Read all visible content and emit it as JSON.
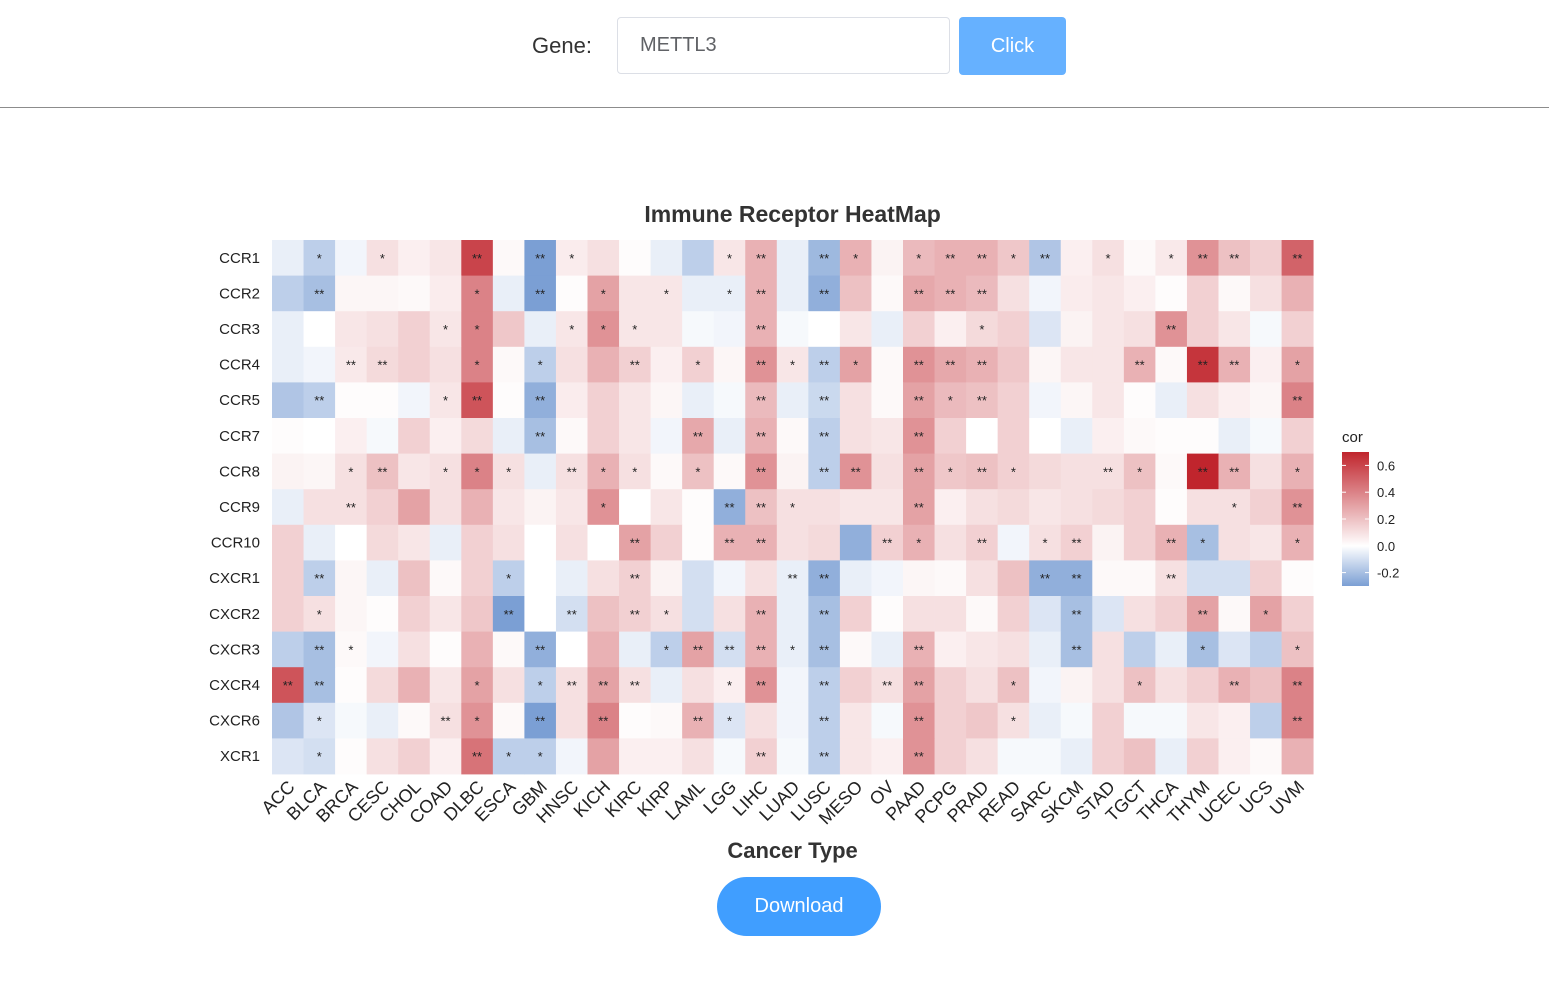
{
  "form": {
    "gene_label": "Gene:",
    "gene_value": "METTL3",
    "click_label": "Click"
  },
  "download_label": "Download",
  "chart_data": {
    "type": "heatmap",
    "title": "Immune Receptor HeatMap",
    "xlabel": "Cancer Type",
    "ylabel": "",
    "x": [
      "ACC",
      "BLCA",
      "BRCA",
      "CESC",
      "CHOL",
      "COAD",
      "DLBC",
      "ESCA",
      "GBM",
      "HNSC",
      "KICH",
      "KIRC",
      "KIRP",
      "LAML",
      "LGG",
      "LIHC",
      "LUAD",
      "LUSC",
      "MESO",
      "OV",
      "PAAD",
      "PCPG",
      "PRAD",
      "READ",
      "SARC",
      "SKCM",
      "STAD",
      "TGCT",
      "THCA",
      "THYM",
      "UCEC",
      "UCS",
      "UVM"
    ],
    "y": [
      "CCR1",
      "CCR2",
      "CCR3",
      "CCR4",
      "CCR5",
      "CCR7",
      "CCR8",
      "CCR9",
      "CCR10",
      "CXCR1",
      "CXCR2",
      "CXCR3",
      "CXCR4",
      "CXCR6",
      "XCR1"
    ],
    "values": [
      [
        -0.05,
        -0.15,
        -0.03,
        0.1,
        0.05,
        0.08,
        0.6,
        0.02,
        -0.3,
        0.06,
        0.1,
        0.01,
        -0.05,
        -0.15,
        0.08,
        0.25,
        -0.05,
        -0.22,
        0.25,
        0.04,
        0.22,
        0.25,
        0.25,
        0.18,
        -0.18,
        0.05,
        0.1,
        0.02,
        0.07,
        0.35,
        0.2,
        0.15,
        0.5
      ],
      [
        -0.15,
        -0.2,
        0.03,
        0.03,
        0.02,
        0.06,
        0.4,
        -0.05,
        -0.35,
        0.01,
        0.3,
        0.08,
        0.08,
        -0.05,
        -0.05,
        0.25,
        -0.05,
        -0.25,
        0.2,
        0.02,
        0.28,
        0.25,
        0.22,
        0.1,
        -0.03,
        0.06,
        0.08,
        0.05,
        0.01,
        0.15,
        0.02,
        0.1,
        0.25
      ],
      [
        -0.05,
        0.0,
        0.08,
        0.1,
        0.15,
        0.08,
        0.4,
        0.18,
        -0.05,
        0.08,
        0.35,
        0.08,
        0.08,
        -0.02,
        -0.03,
        0.25,
        -0.02,
        0.0,
        0.08,
        -0.05,
        0.15,
        0.05,
        0.12,
        0.15,
        -0.08,
        0.04,
        0.08,
        0.1,
        0.35,
        0.15,
        0.08,
        -0.02,
        0.15
      ],
      [
        -0.05,
        -0.03,
        0.07,
        0.12,
        0.15,
        0.1,
        0.4,
        0.02,
        -0.15,
        0.1,
        0.25,
        0.15,
        0.05,
        0.15,
        0.03,
        0.35,
        0.08,
        -0.15,
        0.3,
        0.02,
        0.35,
        0.28,
        0.25,
        0.18,
        0.03,
        0.08,
        0.08,
        0.25,
        0.02,
        0.65,
        0.25,
        0.05,
        0.3
      ],
      [
        -0.18,
        -0.15,
        0.01,
        0.01,
        -0.03,
        0.08,
        0.55,
        0.01,
        -0.25,
        0.06,
        0.15,
        0.08,
        0.03,
        -0.05,
        -0.02,
        0.22,
        -0.05,
        -0.12,
        0.1,
        0.02,
        0.3,
        0.22,
        0.2,
        0.15,
        -0.03,
        0.03,
        0.08,
        0.01,
        -0.05,
        0.1,
        0.05,
        0.03,
        0.4
      ],
      [
        0.01,
        0.0,
        0.05,
        -0.02,
        0.15,
        0.05,
        0.12,
        -0.05,
        -0.2,
        0.02,
        0.15,
        0.08,
        -0.03,
        0.28,
        -0.05,
        0.25,
        0.02,
        -0.15,
        0.1,
        0.08,
        0.35,
        0.15,
        0.0,
        0.15,
        0.0,
        -0.05,
        0.05,
        0.02,
        0.01,
        0.01,
        -0.05,
        -0.02,
        0.15
      ],
      [
        0.04,
        0.03,
        0.1,
        0.2,
        0.08,
        0.1,
        0.4,
        0.1,
        -0.05,
        0.1,
        0.25,
        0.1,
        0.02,
        0.2,
        0.02,
        0.35,
        0.04,
        -0.15,
        0.35,
        0.1,
        0.3,
        0.18,
        0.2,
        0.15,
        0.12,
        0.1,
        0.1,
        0.2,
        0.02,
        0.75,
        0.25,
        0.1,
        0.25
      ],
      [
        -0.05,
        0.1,
        0.1,
        0.15,
        0.3,
        0.1,
        0.25,
        0.08,
        0.04,
        0.08,
        0.35,
        0.0,
        0.08,
        0.01,
        -0.25,
        0.2,
        0.1,
        0.1,
        0.08,
        0.08,
        0.3,
        0.05,
        0.1,
        0.12,
        0.08,
        0.1,
        0.12,
        0.15,
        0.01,
        0.1,
        0.1,
        0.15,
        0.35
      ],
      [
        0.15,
        -0.05,
        0.0,
        0.12,
        0.08,
        -0.05,
        0.15,
        0.1,
        0.0,
        0.1,
        0.0,
        0.3,
        0.15,
        0.01,
        0.25,
        0.25,
        0.1,
        0.12,
        -0.25,
        0.15,
        0.25,
        0.1,
        0.15,
        -0.03,
        0.1,
        0.15,
        0.04,
        0.15,
        0.25,
        -0.2,
        0.1,
        0.08,
        0.25
      ],
      [
        0.15,
        -0.15,
        0.03,
        -0.05,
        0.2,
        0.02,
        0.15,
        -0.15,
        0.0,
        -0.05,
        0.1,
        0.15,
        0.04,
        -0.1,
        -0.03,
        0.1,
        -0.05,
        -0.25,
        -0.05,
        -0.03,
        0.03,
        0.02,
        0.1,
        0.2,
        -0.25,
        -0.25,
        0.02,
        0.02,
        0.1,
        -0.1,
        -0.1,
        0.15,
        0.01
      ],
      [
        0.15,
        0.1,
        0.03,
        0.01,
        0.15,
        0.08,
        0.18,
        -0.4,
        0.0,
        -0.1,
        0.2,
        0.15,
        0.1,
        -0.1,
        0.1,
        0.25,
        -0.05,
        -0.2,
        0.15,
        0.01,
        0.1,
        0.1,
        0.02,
        0.15,
        -0.08,
        -0.2,
        -0.08,
        0.1,
        0.15,
        0.3,
        0.02,
        0.3,
        0.15
      ],
      [
        -0.15,
        -0.2,
        0.02,
        -0.03,
        0.1,
        0.01,
        0.25,
        0.02,
        -0.25,
        0.0,
        0.25,
        -0.05,
        -0.15,
        0.3,
        -0.1,
        0.25,
        -0.05,
        -0.2,
        0.02,
        -0.05,
        0.25,
        0.05,
        0.08,
        0.1,
        -0.05,
        -0.2,
        0.1,
        -0.15,
        -0.05,
        -0.2,
        -0.08,
        -0.15,
        0.2
      ],
      [
        0.55,
        -0.2,
        0.01,
        0.12,
        0.25,
        0.08,
        0.3,
        0.1,
        -0.15,
        0.1,
        0.3,
        0.1,
        -0.05,
        0.1,
        0.05,
        0.35,
        -0.03,
        -0.15,
        0.15,
        0.1,
        0.3,
        0.15,
        0.1,
        0.2,
        -0.03,
        0.04,
        0.1,
        0.2,
        0.1,
        0.15,
        0.25,
        0.2,
        0.4
      ],
      [
        -0.18,
        -0.08,
        -0.02,
        -0.05,
        0.02,
        0.1,
        0.35,
        0.02,
        -0.35,
        0.1,
        0.4,
        0.01,
        0.02,
        0.25,
        -0.08,
        0.1,
        -0.03,
        -0.15,
        0.08,
        -0.02,
        0.35,
        0.15,
        0.18,
        0.1,
        -0.05,
        -0.02,
        0.15,
        -0.02,
        -0.02,
        0.08,
        0.05,
        -0.15,
        0.4
      ],
      [
        -0.08,
        -0.1,
        0.01,
        0.1,
        0.15,
        0.05,
        0.45,
        -0.15,
        -0.15,
        -0.03,
        0.3,
        0.05,
        0.05,
        0.1,
        -0.02,
        0.15,
        -0.02,
        -0.15,
        0.08,
        0.05,
        0.35,
        0.15,
        0.1,
        -0.02,
        -0.02,
        -0.05,
        0.15,
        0.2,
        -0.05,
        0.15,
        0.05,
        0.02,
        0.25
      ]
    ],
    "stars": [
      [
        "",
        "*",
        "",
        "*",
        "",
        "",
        "**",
        "",
        "**",
        "*",
        "",
        "",
        "",
        "",
        "*",
        "**",
        "",
        "**",
        "*",
        "",
        "*",
        "**",
        "**",
        "*",
        "**",
        "",
        "*",
        "",
        "*",
        "**",
        "**",
        "",
        "**"
      ],
      [
        "",
        "**",
        "",
        "",
        "",
        "",
        "*",
        "",
        "**",
        "",
        "*",
        "",
        "*",
        "",
        "*",
        "**",
        "",
        "**",
        "",
        "",
        "**",
        "**",
        "**",
        "",
        "",
        "",
        "",
        "",
        "",
        "",
        "",
        "",
        ""
      ],
      [
        "",
        "",
        "",
        "",
        "",
        "*",
        "*",
        "",
        "",
        "*",
        "*",
        "*",
        "",
        "",
        "",
        "**",
        "",
        "",
        "",
        "",
        "",
        "",
        "*",
        "",
        "",
        "",
        "",
        "",
        "**",
        "",
        "",
        "",
        ""
      ],
      [
        "",
        "",
        "**",
        "**",
        "",
        "",
        "*",
        "",
        "*",
        "",
        "",
        "**",
        "",
        "*",
        "",
        "**",
        "*",
        "**",
        "*",
        "",
        "**",
        "**",
        "**",
        "",
        "",
        "",
        "",
        "**",
        "",
        "**",
        "**",
        "",
        "*"
      ],
      [
        "",
        "**",
        "",
        "",
        "",
        "*",
        "**",
        "",
        "**",
        "",
        "",
        "",
        "",
        "",
        "",
        "**",
        "",
        "**",
        "",
        "",
        "**",
        "*",
        "**",
        "",
        "",
        "",
        "",
        "",
        "",
        "",
        "",
        "",
        "**"
      ],
      [
        "",
        "",
        "",
        "",
        "",
        "",
        "",
        "",
        "**",
        "",
        "",
        "",
        "",
        "**",
        "",
        "**",
        "",
        "**",
        "",
        "",
        "**",
        "",
        "",
        "",
        "",
        "",
        "",
        "",
        "",
        "",
        "",
        "",
        ""
      ],
      [
        "",
        "",
        "*",
        "**",
        "",
        "*",
        "*",
        "*",
        "",
        "**",
        "*",
        "*",
        "",
        "*",
        "",
        "**",
        "",
        "**",
        "**",
        "",
        "**",
        "*",
        "**",
        "*",
        "",
        "",
        "**",
        "*",
        "",
        "**",
        "**",
        "",
        "*"
      ],
      [
        "",
        "",
        "**",
        "",
        "",
        "",
        "",
        "",
        "",
        "",
        "*",
        "",
        "",
        "",
        "**",
        "**",
        "*",
        "",
        "",
        "",
        "**",
        "",
        "",
        "",
        "",
        "",
        "",
        "",
        "",
        "",
        "*",
        "",
        "**"
      ],
      [
        "",
        "",
        "",
        "",
        "",
        "",
        "",
        "",
        "",
        "",
        "",
        "**",
        "",
        "",
        "**",
        "**",
        "",
        "",
        "",
        "**",
        "*",
        "",
        "**",
        "",
        "*",
        "**",
        "",
        "",
        "**",
        "*",
        "",
        "",
        "*"
      ],
      [
        "",
        "**",
        "",
        "",
        "",
        "",
        "",
        "*",
        "",
        "",
        "",
        "**",
        "",
        "",
        "",
        "",
        "**",
        "**",
        "",
        "",
        "",
        "",
        "",
        "",
        "**",
        "**",
        "",
        "",
        "**",
        "",
        "",
        "",
        ""
      ],
      [
        "",
        "*",
        "",
        "",
        "",
        "",
        "",
        "**",
        "",
        "**",
        "",
        "**",
        "*",
        "",
        "",
        "**",
        "",
        "**",
        "",
        "",
        "",
        "",
        "",
        "",
        "",
        "**",
        "",
        "",
        "",
        "**",
        "",
        "*",
        ""
      ],
      [
        "",
        "**",
        "*",
        "",
        "",
        "",
        "",
        "",
        "**",
        "",
        "",
        "",
        "*",
        "**",
        "**",
        "**",
        "*",
        "**",
        "",
        "",
        "**",
        "",
        "",
        "",
        "",
        "**",
        "",
        "",
        "",
        "*",
        "",
        "",
        "*"
      ],
      [
        "**",
        "**",
        "",
        "",
        "",
        "",
        "*",
        "",
        "*",
        "**",
        "**",
        "**",
        "",
        "",
        "*",
        "**",
        "",
        "**",
        "",
        "**",
        "**",
        "",
        "",
        "*",
        "",
        "",
        "",
        "*",
        "",
        "",
        "**",
        "",
        "**"
      ],
      [
        "",
        "*",
        "",
        "",
        "",
        "**",
        "*",
        "",
        "**",
        "",
        "**",
        "",
        "",
        "**",
        "*",
        "",
        "",
        "**",
        "",
        "",
        "**",
        "",
        "",
        "*",
        "",
        "",
        "",
        "",
        "",
        "",
        "",
        "",
        "**"
      ],
      [
        "",
        "*",
        "",
        "",
        "",
        "",
        "**",
        "*",
        "*",
        "",
        "",
        "",
        "",
        "",
        "",
        "**",
        "",
        "**",
        "",
        "",
        "**",
        "",
        "",
        "",
        "",
        "",
        "",
        "",
        "",
        "",
        "",
        "",
        ""
      ]
    ],
    "range": [
      -0.3,
      0.7
    ],
    "colors": {
      "low": "#7b9fd4",
      "mid": "#ffffff",
      "high": "#c0252d"
    },
    "legend": {
      "title": "cor",
      "ticks": [
        0.6,
        0.4,
        0.2,
        0.0,
        -0.2
      ],
      "tick_labels": [
        "0.6",
        "0.4",
        "0.2",
        "0.0",
        "-0.2"
      ],
      "position": "right"
    }
  }
}
